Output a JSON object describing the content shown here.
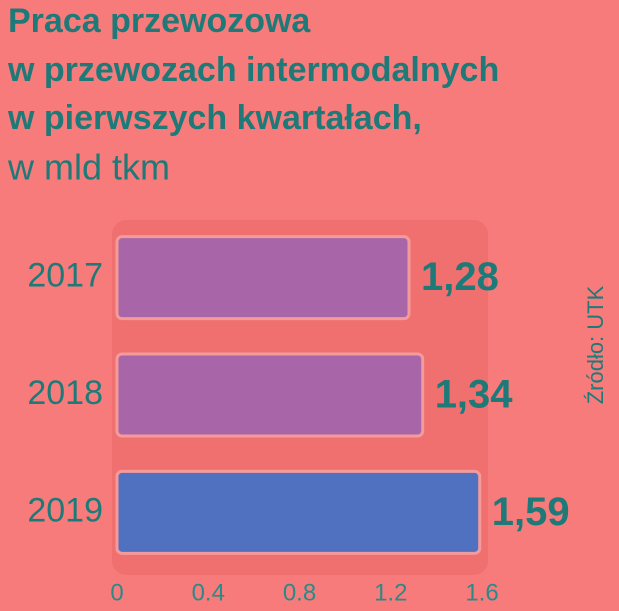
{
  "chart_data": {
    "type": "bar",
    "orientation": "horizontal",
    "title": [
      "Praca przewozowa",
      "w przewozach intermodalnych",
      "w pierwszych kwartałach,"
    ],
    "subtitle": "w mld tkm",
    "source": "Źródło: UTK",
    "categories": [
      "2017",
      "2018",
      "2019"
    ],
    "values": [
      1.28,
      1.34,
      1.59
    ],
    "value_labels": [
      "1,28",
      "1,34",
      "1,59"
    ],
    "colors": [
      "#a866a8",
      "#a866a8",
      "#5070c0"
    ],
    "xlim": [
      0,
      1.6
    ],
    "xticks": [
      0,
      0.4,
      0.8,
      1.2,
      1.6
    ]
  }
}
